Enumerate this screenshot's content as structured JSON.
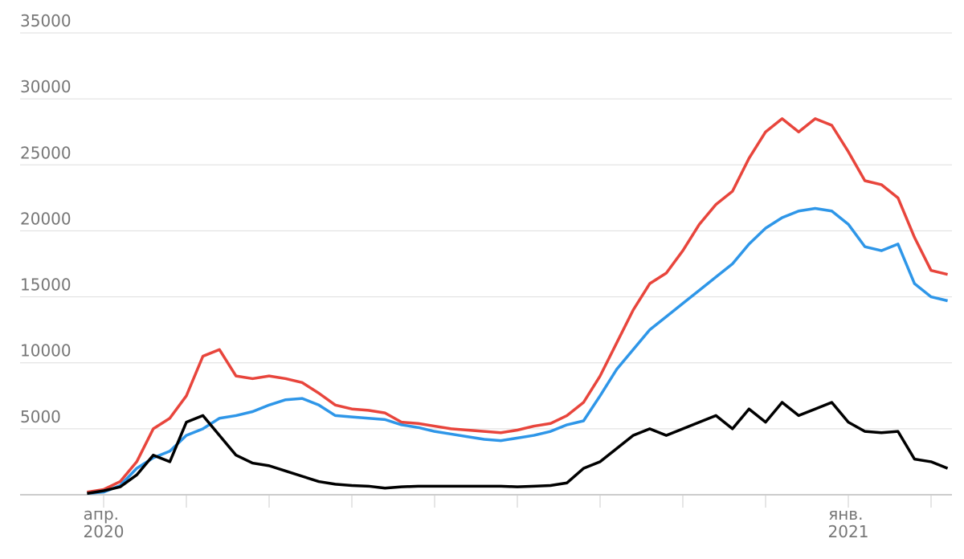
{
  "chart_data": {
    "type": "line",
    "categories": [
      null,
      "апр. 2020",
      null,
      null,
      null,
      null,
      null,
      null,
      null,
      null,
      null,
      null,
      null,
      null,
      null,
      null,
      null,
      null,
      null,
      null,
      null,
      null,
      null,
      null,
      null,
      null,
      null,
      null,
      null,
      null,
      null,
      null,
      null,
      null,
      null,
      null,
      null,
      null,
      null,
      null,
      null,
      null,
      null,
      null,
      null,
      null,
      "янв. 2021",
      null,
      null,
      null,
      null,
      null,
      null
    ],
    "series": [
      {
        "color": "#e8453c",
        "values": [
          200,
          400,
          1000,
          2500,
          5000,
          5800,
          7500,
          10500,
          11000,
          9000,
          8800,
          9000,
          8800,
          8500,
          7700,
          6800,
          6500,
          6400,
          6200,
          5500,
          5400,
          5200,
          5000,
          4900,
          4800,
          4700,
          4900,
          5200,
          5400,
          6000,
          7000,
          9000,
          11500,
          14000,
          16000,
          16800,
          18500,
          20500,
          22000,
          23000,
          25500,
          27500,
          28500,
          27500,
          28500,
          28000,
          26000,
          23800,
          23500,
          22500,
          19500,
          17000,
          16700
        ]
      },
      {
        "color": "#2e96e8",
        "values": [
          100,
          200,
          700,
          2000,
          2800,
          3300,
          4500,
          5000,
          5800,
          6000,
          6300,
          6800,
          7200,
          7300,
          6800,
          6000,
          5900,
          5800,
          5700,
          5300,
          5100,
          4800,
          4600,
          4400,
          4200,
          4100,
          4300,
          4500,
          4800,
          5300,
          5600,
          7500,
          9500,
          11000,
          12500,
          13500,
          14500,
          15500,
          16500,
          17500,
          19000,
          20200,
          21000,
          21500,
          21700,
          21500,
          20500,
          18800,
          18500,
          19000,
          16000,
          15000,
          14700
        ]
      },
      {
        "color": "#000000",
        "values": [
          100,
          300,
          600,
          1500,
          3000,
          2500,
          5500,
          6000,
          4500,
          3000,
          2400,
          2200,
          1800,
          1400,
          1000,
          800,
          700,
          650,
          500,
          600,
          650,
          650,
          650,
          650,
          650,
          650,
          600,
          650,
          700,
          900,
          2000,
          2500,
          3500,
          4500,
          5000,
          4500,
          5000,
          5500,
          6000,
          5000,
          6500,
          5500,
          7000,
          6000,
          6500,
          7000,
          5500,
          4800,
          4700,
          4800,
          2700,
          2500,
          2000
        ]
      }
    ],
    "ylim": [
      0,
      35000
    ],
    "yticks": [
      5000,
      10000,
      15000,
      20000,
      25000,
      30000,
      35000
    ],
    "grid": true
  }
}
